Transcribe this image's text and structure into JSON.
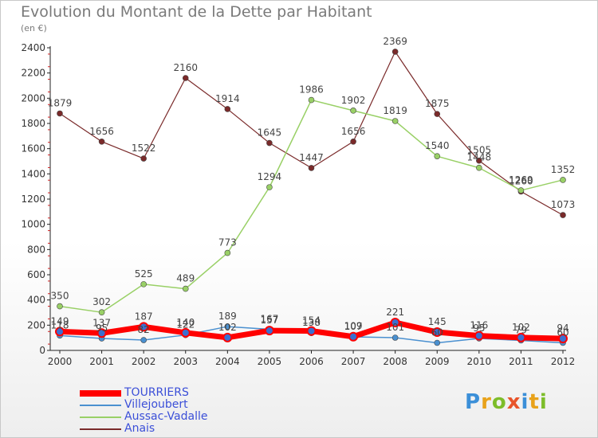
{
  "header": {
    "title": "Evolution du Montant de la Dette par Habitant",
    "subtitle": "(en €)"
  },
  "logo": {
    "letters": [
      "P",
      "r",
      "o",
      "x",
      "i",
      "t",
      "i"
    ],
    "colors": [
      "#3b8fd8",
      "#e8a21a",
      "#7dbd2a",
      "#e8542a",
      "#3b8fd8",
      "#e8a21a",
      "#7dbd2a"
    ]
  },
  "chart_data": {
    "type": "line",
    "x": [
      "2000",
      "2001",
      "2002",
      "2003",
      "2004",
      "2005",
      "2006",
      "2007",
      "2008",
      "2009",
      "2010",
      "2011",
      "2012"
    ],
    "ylim": [
      0,
      2400
    ],
    "yticks": [
      0,
      200,
      400,
      600,
      800,
      1000,
      1200,
      1400,
      1600,
      1800,
      2000,
      2200,
      2400
    ],
    "grid": false,
    "legend_position": "bottom-left",
    "series": [
      {
        "name": "TOURRIERS",
        "color": "#ff0000",
        "width": 7,
        "values": [
          149,
          137,
          187,
          140,
          102,
          157,
          154,
          109,
          221,
          145,
          116,
          102,
          94
        ]
      },
      {
        "name": "Villejoubert",
        "color": "#4a90d0",
        "width": 1.5,
        "values": [
          118,
          95,
          82,
          122,
          189,
          167,
          138,
          107,
          101,
          60,
          95,
          79,
          60
        ]
      },
      {
        "name": "Aussac-Vadalle",
        "color": "#99d066",
        "width": 1.5,
        "values": [
          350,
          302,
          525,
          489,
          773,
          1294,
          1986,
          1902,
          1819,
          1540,
          1448,
          1269,
          1352
        ]
      },
      {
        "name": "Anais",
        "color": "#7a2a2a",
        "width": 1.2,
        "values": [
          1879,
          1656,
          1522,
          2160,
          1914,
          1645,
          1447,
          1656,
          2369,
          1875,
          1505,
          1260,
          1073
        ]
      }
    ]
  }
}
